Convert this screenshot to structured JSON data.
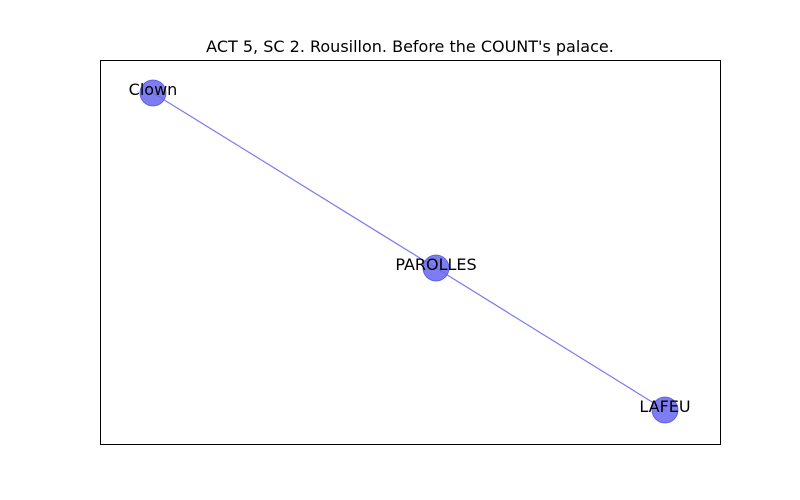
{
  "figure": {
    "title": "ACT 5, SC 2. Rousillon. Before the COUNT's palace."
  },
  "graph": {
    "node_color": "#6666ee",
    "edge_color": "#7b7bee",
    "nodes": [
      {
        "id": "clown",
        "label": "Clown"
      },
      {
        "id": "parolles",
        "label": "PAROLLES"
      },
      {
        "id": "lafeu",
        "label": "LAFEU"
      }
    ],
    "edges": [
      {
        "source": "clown",
        "target": "parolles"
      },
      {
        "source": "parolles",
        "target": "lafeu"
      }
    ]
  }
}
